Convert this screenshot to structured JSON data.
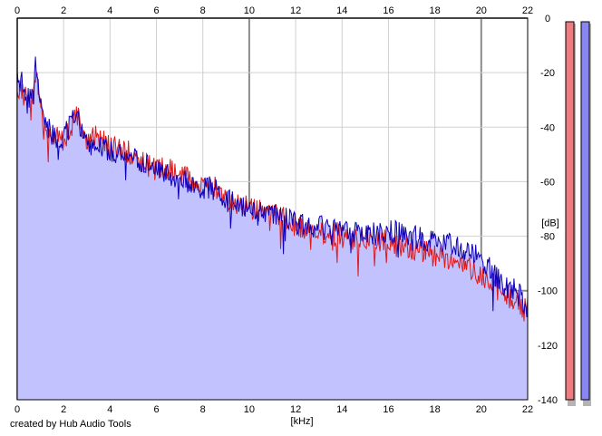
{
  "chart_data": {
    "type": "area",
    "x_unit_label": "[kHz]",
    "y_unit_label": "[dB]",
    "xlim": [
      0,
      22
    ],
    "ylim": [
      -140,
      0
    ],
    "x_ticks": [
      0,
      2,
      4,
      6,
      8,
      10,
      12,
      14,
      16,
      18,
      20,
      22
    ],
    "y_ticks": [
      0,
      -20,
      -40,
      -60,
      -80,
      -100,
      -120,
      -140
    ],
    "x_tick_labels": [
      "0",
      "2",
      "4",
      "6",
      "8",
      "10",
      "12",
      "14",
      "16",
      "18",
      "20",
      "22"
    ],
    "y_tick_labels": [
      "0",
      "-20",
      "-40",
      "-60",
      "-80",
      "-100",
      "-120",
      "-140"
    ],
    "grid": true,
    "series": [
      {
        "channel": "left",
        "color": "#e0191a",
        "x": [
          0,
          0.2,
          0.4,
          0.6,
          0.8,
          1.0,
          1.2,
          1.4,
          1.6,
          1.8,
          2.0,
          2.2,
          2.4,
          2.6,
          2.8,
          3.0,
          3.5,
          4.0,
          4.5,
          5.0,
          5.5,
          6.0,
          6.5,
          7.0,
          7.5,
          8.0,
          8.5,
          9.0,
          9.5,
          10.0,
          10.5,
          11.0,
          11.5,
          12.0,
          12.5,
          13.0,
          13.5,
          14.0,
          14.5,
          15.0,
          15.5,
          16.0,
          16.5,
          17.0,
          17.5,
          18.0,
          18.5,
          19.0,
          19.5,
          20.0,
          20.5,
          21.0,
          21.5,
          22.0
        ],
        "values": [
          -25,
          -27,
          -30,
          -32,
          -20,
          -35,
          -40,
          -42,
          -45,
          -44,
          -45,
          -42,
          -38,
          -36,
          -40,
          -46,
          -43,
          -47,
          -48,
          -50,
          -53,
          -56,
          -55,
          -58,
          -59,
          -61,
          -62,
          -66,
          -68,
          -69,
          -71,
          -72,
          -74,
          -76,
          -77,
          -78,
          -79,
          -80,
          -81,
          -81,
          -82,
          -82,
          -83,
          -84,
          -86,
          -87,
          -88,
          -89,
          -91,
          -94,
          -98,
          -101,
          -104,
          -108
        ]
      },
      {
        "channel": "right",
        "color": "#0f00b8",
        "x": [
          0,
          0.2,
          0.4,
          0.6,
          0.8,
          1.0,
          1.2,
          1.4,
          1.6,
          1.8,
          2.0,
          2.2,
          2.4,
          2.6,
          2.8,
          3.0,
          3.5,
          4.0,
          4.5,
          5.0,
          5.5,
          6.0,
          6.5,
          7.0,
          7.5,
          8.0,
          8.5,
          9.0,
          9.5,
          10.0,
          10.5,
          11.0,
          11.5,
          12.0,
          12.5,
          13.0,
          13.5,
          14.0,
          14.5,
          15.0,
          15.5,
          16.0,
          16.5,
          17.0,
          17.5,
          18.0,
          18.5,
          19.0,
          19.5,
          20.0,
          20.5,
          21.0,
          21.5,
          22.0
        ],
        "values": [
          -22,
          -24,
          -28,
          -30,
          -15,
          -33,
          -39,
          -41,
          -44,
          -43,
          -44,
          -41,
          -38,
          -36,
          -41,
          -47,
          -45,
          -49,
          -50,
          -52,
          -54,
          -56,
          -57,
          -59,
          -60,
          -62,
          -63,
          -67,
          -68,
          -69,
          -71,
          -72,
          -73,
          -75,
          -76,
          -77,
          -77,
          -77,
          -78,
          -79,
          -79,
          -78,
          -79,
          -80,
          -81,
          -81,
          -83,
          -84,
          -85,
          -88,
          -94,
          -98,
          -100,
          -106
        ]
      }
    ],
    "level_meters": [
      {
        "channel": "left",
        "color": "#f07c80",
        "level": 1.0
      },
      {
        "channel": "right",
        "color": "#8a86f0",
        "level": 1.0
      }
    ]
  },
  "credit": "created by Hub Audio Tools",
  "colors": {
    "area_fill": "#c2c2ff",
    "grid_minor": "#d0d0d0",
    "grid_major": "#8c8c8c",
    "axis": "#000000"
  }
}
